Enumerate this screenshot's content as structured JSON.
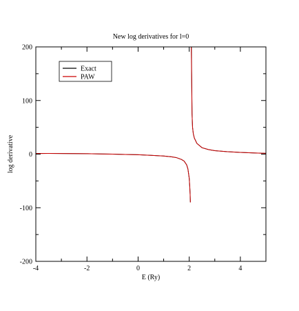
{
  "chart_data": {
    "type": "line",
    "title": "New log derivatives for l=0",
    "xlabel": "E (Ry)",
    "ylabel": "log derivative",
    "xlim": [
      -4,
      5
    ],
    "ylim": [
      -200,
      200
    ],
    "x_ticks": [
      -4,
      -2,
      0,
      2,
      4
    ],
    "y_ticks": [
      -200,
      -100,
      0,
      100,
      200
    ],
    "x_minor_step": 1,
    "y_minor_step": 50,
    "grid": false,
    "legend_position": "top-left",
    "pole_energy": 2.08,
    "series": [
      {
        "name": "Exact",
        "color": "#000000",
        "points": [
          [
            -4.0,
            1.2
          ],
          [
            -3.5,
            1.3
          ],
          [
            -3.0,
            1.2
          ],
          [
            -2.5,
            1.0
          ],
          [
            -2.0,
            0.8
          ],
          [
            -1.5,
            0.4
          ],
          [
            -1.0,
            0.0
          ],
          [
            -0.5,
            -0.6
          ],
          [
            0.0,
            -1.2
          ],
          [
            0.5,
            -2.2
          ],
          [
            1.0,
            -3.5
          ],
          [
            1.3,
            -5.0
          ],
          [
            1.5,
            -6.5
          ],
          [
            1.7,
            -10.0
          ],
          [
            1.8,
            -13.0
          ],
          [
            1.9,
            -20.0
          ],
          [
            1.95,
            -28.0
          ],
          [
            2.0,
            -45.0
          ],
          [
            2.02,
            -60.0
          ],
          [
            2.035,
            -75.0
          ],
          [
            2.045,
            -90.0
          ],
          null,
          [
            2.085,
            200.0
          ],
          [
            2.095,
            150.0
          ],
          [
            2.11,
            75.0
          ],
          [
            2.13,
            50.0
          ],
          [
            2.16,
            38.0
          ],
          [
            2.2,
            30.0
          ],
          [
            2.3,
            20.0
          ],
          [
            2.5,
            12.0
          ],
          [
            2.75,
            8.5
          ],
          [
            3.0,
            6.5
          ],
          [
            3.5,
            4.5
          ],
          [
            4.0,
            3.2
          ],
          [
            4.5,
            2.3
          ],
          [
            5.0,
            1.5
          ]
        ]
      },
      {
        "name": "PAW",
        "color": "#cc0000",
        "points": [
          [
            -4.0,
            1.2
          ],
          [
            -3.5,
            1.3
          ],
          [
            -3.0,
            1.2
          ],
          [
            -2.5,
            1.0
          ],
          [
            -2.0,
            0.8
          ],
          [
            -1.5,
            0.4
          ],
          [
            -1.0,
            0.0
          ],
          [
            -0.5,
            -0.6
          ],
          [
            0.0,
            -1.2
          ],
          [
            0.5,
            -2.2
          ],
          [
            1.0,
            -3.5
          ],
          [
            1.3,
            -5.0
          ],
          [
            1.5,
            -6.5
          ],
          [
            1.7,
            -10.0
          ],
          [
            1.8,
            -13.0
          ],
          [
            1.9,
            -20.0
          ],
          [
            1.95,
            -28.0
          ],
          [
            2.0,
            -45.0
          ],
          [
            2.02,
            -60.0
          ],
          [
            2.035,
            -75.0
          ],
          [
            2.045,
            -90.0
          ],
          null,
          [
            2.08,
            200.0
          ],
          [
            2.092,
            150.0
          ],
          [
            2.11,
            75.0
          ],
          [
            2.13,
            50.0
          ],
          [
            2.16,
            38.0
          ],
          [
            2.2,
            30.0
          ],
          [
            2.3,
            20.0
          ],
          [
            2.5,
            12.0
          ],
          [
            2.75,
            8.5
          ],
          [
            3.0,
            6.5
          ],
          [
            3.5,
            4.5
          ],
          [
            4.0,
            3.2
          ],
          [
            4.5,
            2.3
          ],
          [
            5.0,
            1.5
          ]
        ]
      }
    ]
  }
}
